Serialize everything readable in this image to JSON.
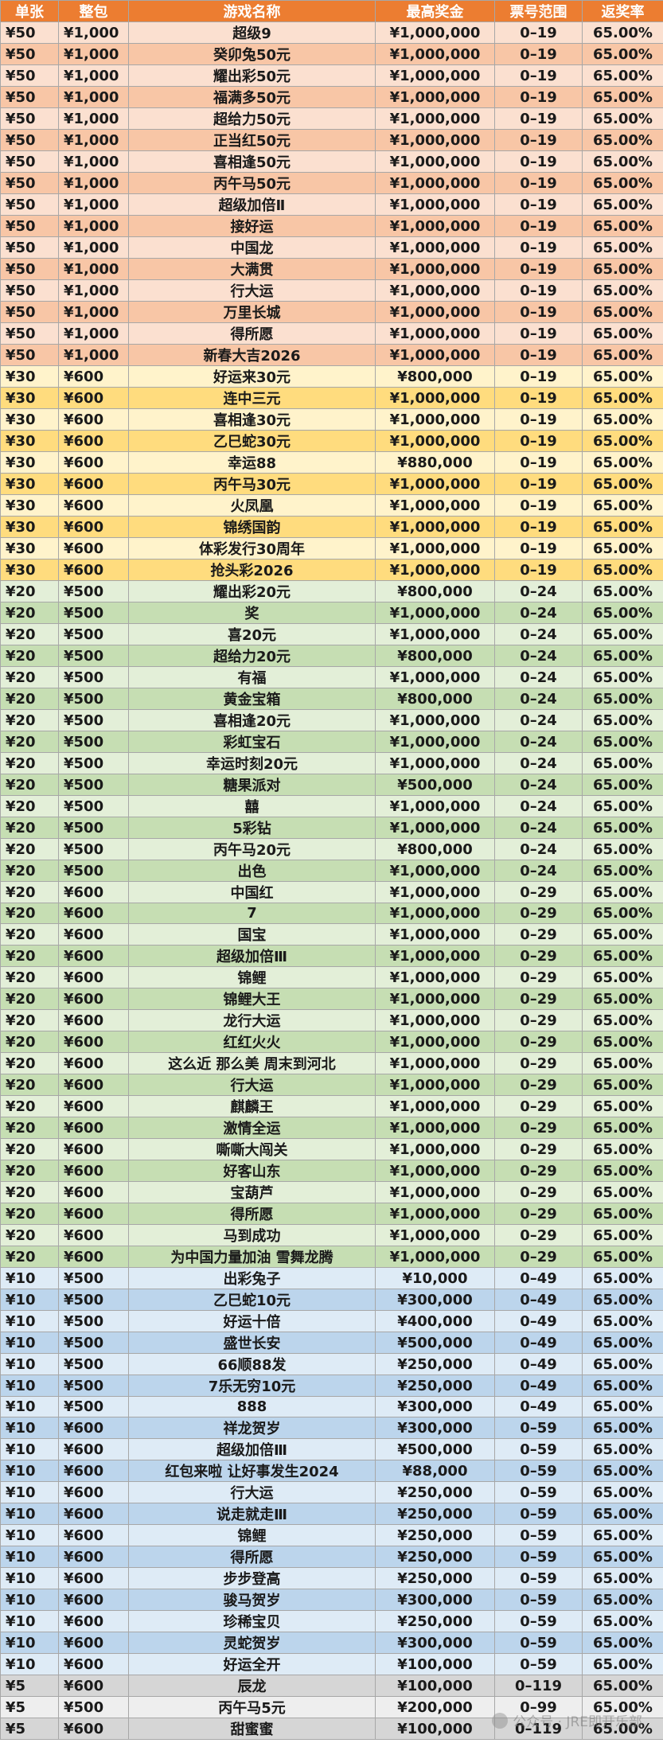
{
  "table": {
    "headers": [
      "单张",
      "整包",
      "游戏名称",
      "最高奖金",
      "票号范围",
      "返奖率"
    ],
    "rows": [
      [
        "¥50",
        "¥1,000",
        "超级9",
        "¥1,000,000",
        "0–19",
        "65.00%"
      ],
      [
        "¥50",
        "¥1,000",
        "癸卯兔50元",
        "¥1,000,000",
        "0–19",
        "65.00%"
      ],
      [
        "¥50",
        "¥1,000",
        "耀出彩50元",
        "¥1,000,000",
        "0–19",
        "65.00%"
      ],
      [
        "¥50",
        "¥1,000",
        "福满多50元",
        "¥1,000,000",
        "0–19",
        "65.00%"
      ],
      [
        "¥50",
        "¥1,000",
        "超给力50元",
        "¥1,000,000",
        "0–19",
        "65.00%"
      ],
      [
        "¥50",
        "¥1,000",
        "正当红50元",
        "¥1,000,000",
        "0–19",
        "65.00%"
      ],
      [
        "¥50",
        "¥1,000",
        "喜相逢50元",
        "¥1,000,000",
        "0–19",
        "65.00%"
      ],
      [
        "¥50",
        "¥1,000",
        "丙午马50元",
        "¥1,000,000",
        "0–19",
        "65.00%"
      ],
      [
        "¥50",
        "¥1,000",
        "超级加倍Ⅱ",
        "¥1,000,000",
        "0–19",
        "65.00%"
      ],
      [
        "¥50",
        "¥1,000",
        "接好运",
        "¥1,000,000",
        "0–19",
        "65.00%"
      ],
      [
        "¥50",
        "¥1,000",
        "中国龙",
        "¥1,000,000",
        "0–19",
        "65.00%"
      ],
      [
        "¥50",
        "¥1,000",
        "大满贯",
        "¥1,000,000",
        "0–19",
        "65.00%"
      ],
      [
        "¥50",
        "¥1,000",
        "行大运",
        "¥1,000,000",
        "0–19",
        "65.00%"
      ],
      [
        "¥50",
        "¥1,000",
        "万里长城",
        "¥1,000,000",
        "0–19",
        "65.00%"
      ],
      [
        "¥50",
        "¥1,000",
        "得所愿",
        "¥1,000,000",
        "0–19",
        "65.00%"
      ],
      [
        "¥50",
        "¥1,000",
        "新春大吉2026",
        "¥1,000,000",
        "0–19",
        "65.00%"
      ],
      [
        "¥30",
        "¥600",
        "好运来30元",
        "¥800,000",
        "0–19",
        "65.00%"
      ],
      [
        "¥30",
        "¥600",
        "连中三元",
        "¥1,000,000",
        "0–19",
        "65.00%"
      ],
      [
        "¥30",
        "¥600",
        "喜相逢30元",
        "¥1,000,000",
        "0–19",
        "65.00%"
      ],
      [
        "¥30",
        "¥600",
        "乙巳蛇30元",
        "¥1,000,000",
        "0–19",
        "65.00%"
      ],
      [
        "¥30",
        "¥600",
        "幸运88",
        "¥880,000",
        "0–19",
        "65.00%"
      ],
      [
        "¥30",
        "¥600",
        "丙午马30元",
        "¥1,000,000",
        "0–19",
        "65.00%"
      ],
      [
        "¥30",
        "¥600",
        "火凤凰",
        "¥1,000,000",
        "0–19",
        "65.00%"
      ],
      [
        "¥30",
        "¥600",
        "锦绣国韵",
        "¥1,000,000",
        "0–19",
        "65.00%"
      ],
      [
        "¥30",
        "¥600",
        "体彩发行30周年",
        "¥1,000,000",
        "0–19",
        "65.00%"
      ],
      [
        "¥30",
        "¥600",
        "抢头彩2026",
        "¥1,000,000",
        "0–19",
        "65.00%"
      ],
      [
        "¥20",
        "¥500",
        "耀出彩20元",
        "¥800,000",
        "0–24",
        "65.00%"
      ],
      [
        "¥20",
        "¥500",
        "奖",
        "¥1,000,000",
        "0–24",
        "65.00%"
      ],
      [
        "¥20",
        "¥500",
        "喜20元",
        "¥1,000,000",
        "0–24",
        "65.00%"
      ],
      [
        "¥20",
        "¥500",
        "超给力20元",
        "¥800,000",
        "0–24",
        "65.00%"
      ],
      [
        "¥20",
        "¥500",
        "有福",
        "¥1,000,000",
        "0–24",
        "65.00%"
      ],
      [
        "¥20",
        "¥500",
        "黄金宝箱",
        "¥800,000",
        "0–24",
        "65.00%"
      ],
      [
        "¥20",
        "¥500",
        "喜相逢20元",
        "¥1,000,000",
        "0–24",
        "65.00%"
      ],
      [
        "¥20",
        "¥500",
        "彩虹宝石",
        "¥1,000,000",
        "0–24",
        "65.00%"
      ],
      [
        "¥20",
        "¥500",
        "幸运时刻20元",
        "¥1,000,000",
        "0–24",
        "65.00%"
      ],
      [
        "¥20",
        "¥500",
        "糖果派对",
        "¥500,000",
        "0–24",
        "65.00%"
      ],
      [
        "¥20",
        "¥500",
        "囍",
        "¥1,000,000",
        "0–24",
        "65.00%"
      ],
      [
        "¥20",
        "¥500",
        "5彩钻",
        "¥1,000,000",
        "0–24",
        "65.00%"
      ],
      [
        "¥20",
        "¥500",
        "丙午马20元",
        "¥800,000",
        "0–24",
        "65.00%"
      ],
      [
        "¥20",
        "¥500",
        "出色",
        "¥1,000,000",
        "0–24",
        "65.00%"
      ],
      [
        "¥20",
        "¥600",
        "中国红",
        "¥1,000,000",
        "0–29",
        "65.00%"
      ],
      [
        "¥20",
        "¥600",
        "7",
        "¥1,000,000",
        "0–29",
        "65.00%"
      ],
      [
        "¥20",
        "¥600",
        "国宝",
        "¥1,000,000",
        "0–29",
        "65.00%"
      ],
      [
        "¥20",
        "¥600",
        "超级加倍Ⅲ",
        "¥1,000,000",
        "0–29",
        "65.00%"
      ],
      [
        "¥20",
        "¥600",
        "锦鲤",
        "¥1,000,000",
        "0–29",
        "65.00%"
      ],
      [
        "¥20",
        "¥600",
        "锦鲤大王",
        "¥1,000,000",
        "0–29",
        "65.00%"
      ],
      [
        "¥20",
        "¥600",
        "龙行大运",
        "¥1,000,000",
        "0–29",
        "65.00%"
      ],
      [
        "¥20",
        "¥600",
        "红红火火",
        "¥1,000,000",
        "0–29",
        "65.00%"
      ],
      [
        "¥20",
        "¥600",
        "这么近 那么美 周末到河北",
        "¥1,000,000",
        "0–29",
        "65.00%"
      ],
      [
        "¥20",
        "¥600",
        "行大运",
        "¥1,000,000",
        "0–29",
        "65.00%"
      ],
      [
        "¥20",
        "¥600",
        "麒麟王",
        "¥1,000,000",
        "0–29",
        "65.00%"
      ],
      [
        "¥20",
        "¥600",
        "激情全运",
        "¥1,000,000",
        "0–29",
        "65.00%"
      ],
      [
        "¥20",
        "¥600",
        "嘶嘶大闯关",
        "¥1,000,000",
        "0–29",
        "65.00%"
      ],
      [
        "¥20",
        "¥600",
        "好客山东",
        "¥1,000,000",
        "0–29",
        "65.00%"
      ],
      [
        "¥20",
        "¥600",
        "宝葫芦",
        "¥1,000,000",
        "0–29",
        "65.00%"
      ],
      [
        "¥20",
        "¥600",
        "得所愿",
        "¥1,000,000",
        "0–29",
        "65.00%"
      ],
      [
        "¥20",
        "¥600",
        "马到成功",
        "¥1,000,000",
        "0–29",
        "65.00%"
      ],
      [
        "¥20",
        "¥600",
        "为中国力量加油 雪舞龙腾",
        "¥1,000,000",
        "0–29",
        "65.00%"
      ],
      [
        "¥10",
        "¥500",
        "出彩兔子",
        "¥10,000",
        "0–49",
        "65.00%"
      ],
      [
        "¥10",
        "¥500",
        "乙巳蛇10元",
        "¥300,000",
        "0–49",
        "65.00%"
      ],
      [
        "¥10",
        "¥500",
        "好运十倍",
        "¥400,000",
        "0–49",
        "65.00%"
      ],
      [
        "¥10",
        "¥500",
        "盛世长安",
        "¥500,000",
        "0–49",
        "65.00%"
      ],
      [
        "¥10",
        "¥500",
        "66顺88发",
        "¥250,000",
        "0–49",
        "65.00%"
      ],
      [
        "¥10",
        "¥500",
        "7乐无穷10元",
        "¥250,000",
        "0–49",
        "65.00%"
      ],
      [
        "¥10",
        "¥500",
        "888",
        "¥300,000",
        "0–49",
        "65.00%"
      ],
      [
        "¥10",
        "¥600",
        "祥龙贺岁",
        "¥300,000",
        "0–59",
        "65.00%"
      ],
      [
        "¥10",
        "¥600",
        "超级加倍Ⅲ",
        "¥500,000",
        "0–59",
        "65.00%"
      ],
      [
        "¥10",
        "¥600",
        "红包来啦 让好事发生2024",
        "¥88,000",
        "0–59",
        "65.00%"
      ],
      [
        "¥10",
        "¥600",
        "行大运",
        "¥250,000",
        "0–59",
        "65.00%"
      ],
      [
        "¥10",
        "¥600",
        "说走就走Ⅲ",
        "¥250,000",
        "0–59",
        "65.00%"
      ],
      [
        "¥10",
        "¥600",
        "锦鲤",
        "¥250,000",
        "0–59",
        "65.00%"
      ],
      [
        "¥10",
        "¥600",
        "得所愿",
        "¥250,000",
        "0–59",
        "65.00%"
      ],
      [
        "¥10",
        "¥600",
        "步步登高",
        "¥250,000",
        "0–59",
        "65.00%"
      ],
      [
        "¥10",
        "¥600",
        "骏马贺岁",
        "¥300,000",
        "0–59",
        "65.00%"
      ],
      [
        "¥10",
        "¥600",
        "珍稀宝贝",
        "¥250,000",
        "0–59",
        "65.00%"
      ],
      [
        "¥10",
        "¥600",
        "灵蛇贺岁",
        "¥300,000",
        "0–59",
        "65.00%"
      ],
      [
        "¥10",
        "¥600",
        "好运全开",
        "¥100,000",
        "0–59",
        "65.00%"
      ],
      [
        "¥5",
        "¥600",
        "辰龙",
        "¥100,000",
        "0–119",
        "65.00%"
      ],
      [
        "¥5",
        "¥500",
        "丙午马5元",
        "¥200,000",
        "0–99",
        "65.00%"
      ],
      [
        "¥5",
        "¥600",
        "甜蜜蜜",
        "¥100,000",
        "0–119",
        "65.00%"
      ]
    ]
  },
  "watermark": "公众号 · JRE即开乐部",
  "colors": {
    "header": "#ec7d31",
    "tier50": [
      "#fbe0d0",
      "#f8c6a6"
    ],
    "tier30": [
      "#fff3cb",
      "#ffdc7e"
    ],
    "tier20": [
      "#e3efd8",
      "#c6deb3"
    ],
    "tier10": [
      "#deebf6",
      "#bcd5ec"
    ],
    "tier5": [
      "#eeeeee",
      "#d6d6d6"
    ]
  }
}
